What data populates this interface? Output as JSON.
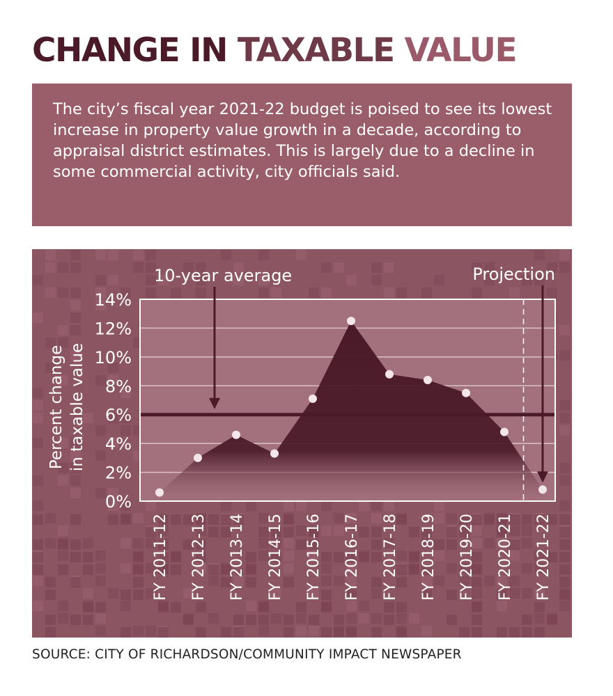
{
  "header": {
    "title_parts": [
      "CHANGE",
      "IN",
      "TAXABLE",
      "VALUE"
    ]
  },
  "intro_text": "The city’s fiscal year 2021-22 budget is poised to see its lowest increase in property value growth in a decade, according to appraisal district estimates. This is largely due to a decline in some commercial activity, city officials said.",
  "source": "SOURCE: CITY OF RICHARDSON/COMMUNITY IMPACT NEWSPAPER",
  "colors": {
    "title_dark": "#4a1a28",
    "title_mid": "#6e3a48",
    "title_light": "#9a5a6a",
    "panel_bg": "#8c5562",
    "plot_bg": "#a3707d",
    "area_fill": "#4a1a28",
    "average_line": "#4a1a28",
    "point": "#f3e6ea"
  },
  "chart_data": {
    "type": "area",
    "title": "",
    "xlabel": "",
    "ylabel": "Percent change in taxable value",
    "categories": [
      "FY 2011-12",
      "FY 2012-13",
      "FY 2013-14",
      "FY 2014-15",
      "FY 2015-16",
      "FY 2016-17",
      "FY 2017-18",
      "FY 2018-19",
      "FY 2019-20",
      "FY 2020-21",
      "FY 2021-22"
    ],
    "values": [
      0.6,
      3.0,
      4.6,
      3.3,
      7.1,
      12.5,
      8.8,
      8.4,
      7.5,
      4.8,
      0.8
    ],
    "ylim": [
      0,
      14
    ],
    "yticks": [
      0,
      2,
      4,
      6,
      8,
      10,
      12,
      14
    ],
    "ytick_labels": [
      "0%",
      "2%",
      "4%",
      "6%",
      "8%",
      "10%",
      "12%",
      "14%"
    ],
    "grid": true,
    "average": {
      "label": "10-year average",
      "value": 6.0
    },
    "projection": {
      "label": "Projection",
      "category": "FY 2021-22"
    }
  }
}
